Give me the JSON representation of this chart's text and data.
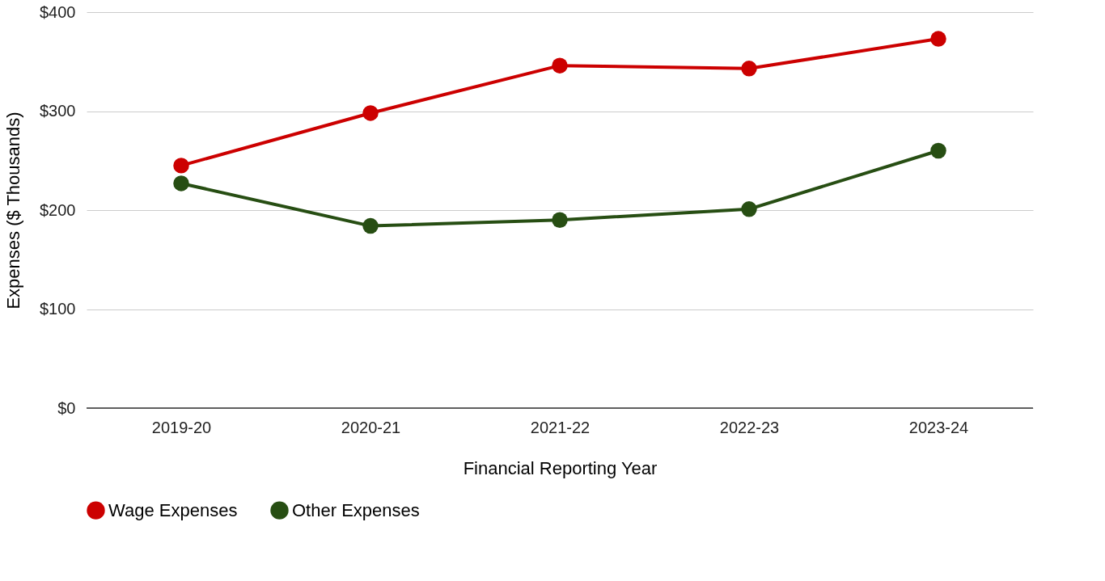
{
  "chart_data": {
    "type": "line",
    "xlabel": "Financial Reporting Year",
    "ylabel": "Expenses ($ Thousands)",
    "categories": [
      "2019-20",
      "2020-21",
      "2021-22",
      "2022-23",
      "2023-24"
    ],
    "series": [
      {
        "name": "Wage Expenses",
        "color": "#cc0000",
        "values": [
          245,
          298,
          346,
          343,
          373
        ]
      },
      {
        "name": "Other Expenses",
        "color": "#274e13",
        "values": [
          227,
          184,
          190,
          201,
          260
        ]
      }
    ],
    "ylim": [
      0,
      400
    ],
    "yticks": [
      {
        "value": 0,
        "label": "$0"
      },
      {
        "value": 100,
        "label": "$100"
      },
      {
        "value": 200,
        "label": "$200"
      },
      {
        "value": 300,
        "label": "$300"
      },
      {
        "value": 400,
        "label": "$400"
      }
    ],
    "grid": "y",
    "legend": "bottom",
    "marker": "circle",
    "line_style": "solid"
  }
}
